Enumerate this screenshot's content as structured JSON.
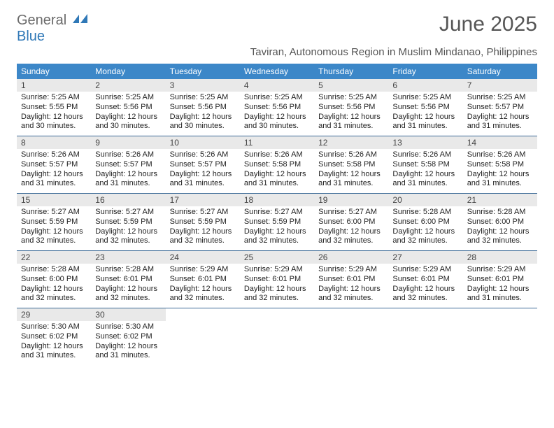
{
  "brand": {
    "part1": "General",
    "part2": "Blue"
  },
  "title": "June 2025",
  "subtitle": "Taviran, Autonomous Region in Muslim Mindanao, Philippines",
  "colors": {
    "header_bg": "#3c87c8",
    "header_text": "#ffffff",
    "daynum_bg": "#e9e9e9",
    "week_border": "#3c6a97",
    "title_color": "#555555",
    "body_text": "#222222",
    "logo_gray": "#6a6a6a",
    "logo_blue": "#2f78b7"
  },
  "day_headers": [
    "Sunday",
    "Monday",
    "Tuesday",
    "Wednesday",
    "Thursday",
    "Friday",
    "Saturday"
  ],
  "weeks": [
    [
      {
        "n": "1",
        "sr": "5:25 AM",
        "ss": "5:55 PM",
        "dl": "12 hours and 30 minutes."
      },
      {
        "n": "2",
        "sr": "5:25 AM",
        "ss": "5:56 PM",
        "dl": "12 hours and 30 minutes."
      },
      {
        "n": "3",
        "sr": "5:25 AM",
        "ss": "5:56 PM",
        "dl": "12 hours and 30 minutes."
      },
      {
        "n": "4",
        "sr": "5:25 AM",
        "ss": "5:56 PM",
        "dl": "12 hours and 30 minutes."
      },
      {
        "n": "5",
        "sr": "5:25 AM",
        "ss": "5:56 PM",
        "dl": "12 hours and 31 minutes."
      },
      {
        "n": "6",
        "sr": "5:25 AM",
        "ss": "5:56 PM",
        "dl": "12 hours and 31 minutes."
      },
      {
        "n": "7",
        "sr": "5:25 AM",
        "ss": "5:57 PM",
        "dl": "12 hours and 31 minutes."
      }
    ],
    [
      {
        "n": "8",
        "sr": "5:26 AM",
        "ss": "5:57 PM",
        "dl": "12 hours and 31 minutes."
      },
      {
        "n": "9",
        "sr": "5:26 AM",
        "ss": "5:57 PM",
        "dl": "12 hours and 31 minutes."
      },
      {
        "n": "10",
        "sr": "5:26 AM",
        "ss": "5:57 PM",
        "dl": "12 hours and 31 minutes."
      },
      {
        "n": "11",
        "sr": "5:26 AM",
        "ss": "5:58 PM",
        "dl": "12 hours and 31 minutes."
      },
      {
        "n": "12",
        "sr": "5:26 AM",
        "ss": "5:58 PM",
        "dl": "12 hours and 31 minutes."
      },
      {
        "n": "13",
        "sr": "5:26 AM",
        "ss": "5:58 PM",
        "dl": "12 hours and 31 minutes."
      },
      {
        "n": "14",
        "sr": "5:26 AM",
        "ss": "5:58 PM",
        "dl": "12 hours and 31 minutes."
      }
    ],
    [
      {
        "n": "15",
        "sr": "5:27 AM",
        "ss": "5:59 PM",
        "dl": "12 hours and 32 minutes."
      },
      {
        "n": "16",
        "sr": "5:27 AM",
        "ss": "5:59 PM",
        "dl": "12 hours and 32 minutes."
      },
      {
        "n": "17",
        "sr": "5:27 AM",
        "ss": "5:59 PM",
        "dl": "12 hours and 32 minutes."
      },
      {
        "n": "18",
        "sr": "5:27 AM",
        "ss": "5:59 PM",
        "dl": "12 hours and 32 minutes."
      },
      {
        "n": "19",
        "sr": "5:27 AM",
        "ss": "6:00 PM",
        "dl": "12 hours and 32 minutes."
      },
      {
        "n": "20",
        "sr": "5:28 AM",
        "ss": "6:00 PM",
        "dl": "12 hours and 32 minutes."
      },
      {
        "n": "21",
        "sr": "5:28 AM",
        "ss": "6:00 PM",
        "dl": "12 hours and 32 minutes."
      }
    ],
    [
      {
        "n": "22",
        "sr": "5:28 AM",
        "ss": "6:00 PM",
        "dl": "12 hours and 32 minutes."
      },
      {
        "n": "23",
        "sr": "5:28 AM",
        "ss": "6:01 PM",
        "dl": "12 hours and 32 minutes."
      },
      {
        "n": "24",
        "sr": "5:29 AM",
        "ss": "6:01 PM",
        "dl": "12 hours and 32 minutes."
      },
      {
        "n": "25",
        "sr": "5:29 AM",
        "ss": "6:01 PM",
        "dl": "12 hours and 32 minutes."
      },
      {
        "n": "26",
        "sr": "5:29 AM",
        "ss": "6:01 PM",
        "dl": "12 hours and 32 minutes."
      },
      {
        "n": "27",
        "sr": "5:29 AM",
        "ss": "6:01 PM",
        "dl": "12 hours and 32 minutes."
      },
      {
        "n": "28",
        "sr": "5:29 AM",
        "ss": "6:01 PM",
        "dl": "12 hours and 31 minutes."
      }
    ],
    [
      {
        "n": "29",
        "sr": "5:30 AM",
        "ss": "6:02 PM",
        "dl": "12 hours and 31 minutes."
      },
      {
        "n": "30",
        "sr": "5:30 AM",
        "ss": "6:02 PM",
        "dl": "12 hours and 31 minutes."
      },
      null,
      null,
      null,
      null,
      null
    ]
  ],
  "labels": {
    "sunrise": "Sunrise: ",
    "sunset": "Sunset: ",
    "daylight": "Daylight: "
  }
}
